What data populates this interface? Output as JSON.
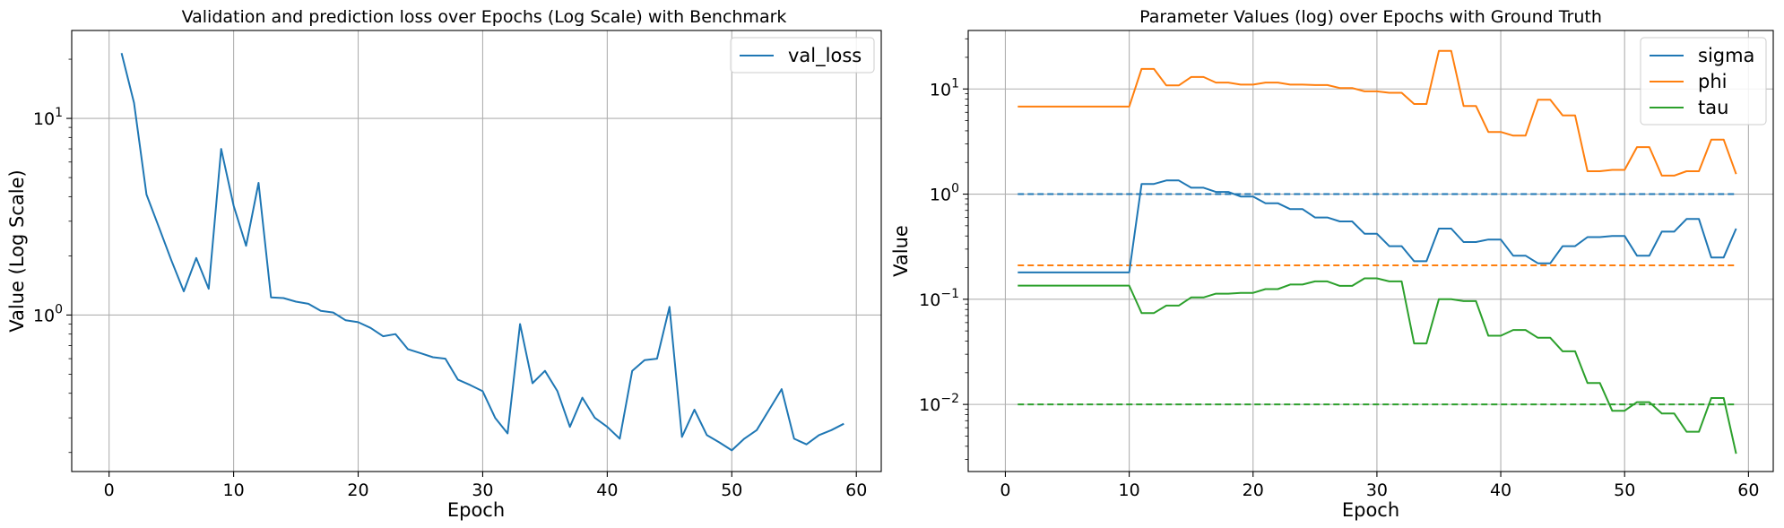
{
  "chart_data": [
    {
      "type": "line",
      "title": "Validation and prediction loss over Epochs (Log Scale) with Benchmark",
      "xlabel": "Epoch",
      "ylabel": "Value (Log Scale)",
      "yscale": "log",
      "xlim": [
        -3,
        62
      ],
      "ylim": [
        0.16,
        28
      ],
      "xticks": [
        0,
        10,
        20,
        30,
        40,
        50,
        60
      ],
      "yticks": [
        {
          "value": 1,
          "label": "10",
          "exp": "0"
        },
        {
          "value": 10,
          "label": "10",
          "exp": "1"
        }
      ],
      "grid": true,
      "legend_position": "top-right",
      "x": [
        1,
        2,
        3,
        4,
        5,
        6,
        7,
        8,
        9,
        10,
        11,
        12,
        13,
        14,
        15,
        16,
        17,
        18,
        19,
        20,
        21,
        22,
        23,
        24,
        25,
        26,
        27,
        28,
        29,
        30,
        31,
        32,
        33,
        34,
        35,
        36,
        37,
        38,
        39,
        40,
        41,
        42,
        43,
        44,
        45,
        46,
        47,
        48,
        49,
        50,
        51,
        52,
        53,
        54,
        55,
        56,
        57,
        58,
        59
      ],
      "series": [
        {
          "name": "val_loss",
          "color": "#1f77b4",
          "dashed": false,
          "values": [
            21.5,
            12,
            4.1,
            2.8,
            1.9,
            1.32,
            1.95,
            1.36,
            7.0,
            3.6,
            2.25,
            4.7,
            1.23,
            1.22,
            1.17,
            1.14,
            1.05,
            1.03,
            0.94,
            0.92,
            0.86,
            0.78,
            0.8,
            0.67,
            0.64,
            0.61,
            0.6,
            0.47,
            0.44,
            0.41,
            0.3,
            0.25,
            0.9,
            0.45,
            0.52,
            0.41,
            0.27,
            0.38,
            0.3,
            0.27,
            0.235,
            0.52,
            0.59,
            0.6,
            1.1,
            0.24,
            0.33,
            0.245,
            0.225,
            0.205,
            0.235,
            0.26,
            0.33,
            0.42,
            0.235,
            0.22,
            0.245,
            0.26,
            0.28
          ]
        }
      ]
    },
    {
      "type": "line",
      "title": "Parameter Values (log) over Epochs with Ground Truth",
      "xlabel": "Epoch",
      "ylabel": "Value",
      "yscale": "log",
      "xlim": [
        -3,
        62
      ],
      "ylim": [
        0.0023,
        36
      ],
      "xticks": [
        0,
        10,
        20,
        30,
        40,
        50,
        60
      ],
      "yticks": [
        {
          "value": 0.01,
          "label": "10",
          "exp": "−2"
        },
        {
          "value": 0.1,
          "label": "10",
          "exp": "−1"
        },
        {
          "value": 1,
          "label": "10",
          "exp": "0"
        },
        {
          "value": 10,
          "label": "10",
          "exp": "1"
        }
      ],
      "grid": true,
      "legend_position": "top-right",
      "x": [
        1,
        2,
        3,
        4,
        5,
        6,
        7,
        8,
        9,
        10,
        11,
        12,
        13,
        14,
        15,
        16,
        17,
        18,
        19,
        20,
        21,
        22,
        23,
        24,
        25,
        26,
        27,
        28,
        29,
        30,
        31,
        32,
        33,
        34,
        35,
        36,
        37,
        38,
        39,
        40,
        41,
        42,
        43,
        44,
        45,
        46,
        47,
        48,
        49,
        50,
        51,
        52,
        53,
        54,
        55,
        56,
        57,
        58,
        59
      ],
      "series": [
        {
          "name": "sigma",
          "color": "#1f77b4",
          "dashed": false,
          "values": [
            0.18,
            0.18,
            0.18,
            0.18,
            0.18,
            0.18,
            0.18,
            0.18,
            0.18,
            0.18,
            1.25,
            1.25,
            1.35,
            1.35,
            1.15,
            1.15,
            1.05,
            1.05,
            0.95,
            0.95,
            0.82,
            0.82,
            0.72,
            0.72,
            0.6,
            0.6,
            0.55,
            0.55,
            0.42,
            0.42,
            0.32,
            0.32,
            0.23,
            0.23,
            0.47,
            0.47,
            0.35,
            0.35,
            0.37,
            0.37,
            0.26,
            0.26,
            0.22,
            0.22,
            0.32,
            0.32,
            0.39,
            0.39,
            0.4,
            0.4,
            0.26,
            0.26,
            0.44,
            0.44,
            0.58,
            0.58,
            0.25,
            0.25,
            0.47
          ]
        },
        {
          "name": "phi",
          "color": "#ff7f0e",
          "dashed": false,
          "values": [
            6.8,
            6.8,
            6.8,
            6.8,
            6.8,
            6.8,
            6.8,
            6.8,
            6.8,
            6.8,
            15.5,
            15.5,
            10.8,
            10.8,
            13,
            13,
            11.5,
            11.5,
            11,
            11,
            11.5,
            11.5,
            11,
            11,
            10.9,
            10.9,
            10.2,
            10.2,
            9.5,
            9.5,
            9.2,
            9.2,
            7.2,
            7.2,
            23,
            23,
            6.9,
            6.9,
            3.9,
            3.9,
            3.6,
            3.6,
            7.9,
            7.9,
            5.6,
            5.6,
            1.65,
            1.65,
            1.7,
            1.7,
            2.8,
            2.8,
            1.5,
            1.5,
            1.65,
            1.65,
            3.3,
            3.3,
            1.55
          ]
        },
        {
          "name": "tau",
          "color": "#2ca02c",
          "dashed": false,
          "values": [
            0.135,
            0.135,
            0.135,
            0.135,
            0.135,
            0.135,
            0.135,
            0.135,
            0.135,
            0.135,
            0.074,
            0.074,
            0.087,
            0.087,
            0.104,
            0.104,
            0.113,
            0.113,
            0.115,
            0.115,
            0.125,
            0.125,
            0.138,
            0.138,
            0.148,
            0.148,
            0.134,
            0.134,
            0.158,
            0.158,
            0.148,
            0.148,
            0.038,
            0.038,
            0.1,
            0.1,
            0.096,
            0.096,
            0.045,
            0.045,
            0.051,
            0.051,
            0.043,
            0.043,
            0.032,
            0.032,
            0.016,
            0.016,
            0.0087,
            0.0087,
            0.0105,
            0.0105,
            0.0082,
            0.0082,
            0.0055,
            0.0055,
            0.0115,
            0.0115,
            0.0034
          ]
        }
      ],
      "reference_lines": [
        {
          "value": 1.0,
          "color": "#1f77b4",
          "dashed": true
        },
        {
          "value": 0.21,
          "color": "#ff7f0e",
          "dashed": true
        },
        {
          "value": 0.01,
          "color": "#2ca02c",
          "dashed": true
        }
      ]
    }
  ]
}
